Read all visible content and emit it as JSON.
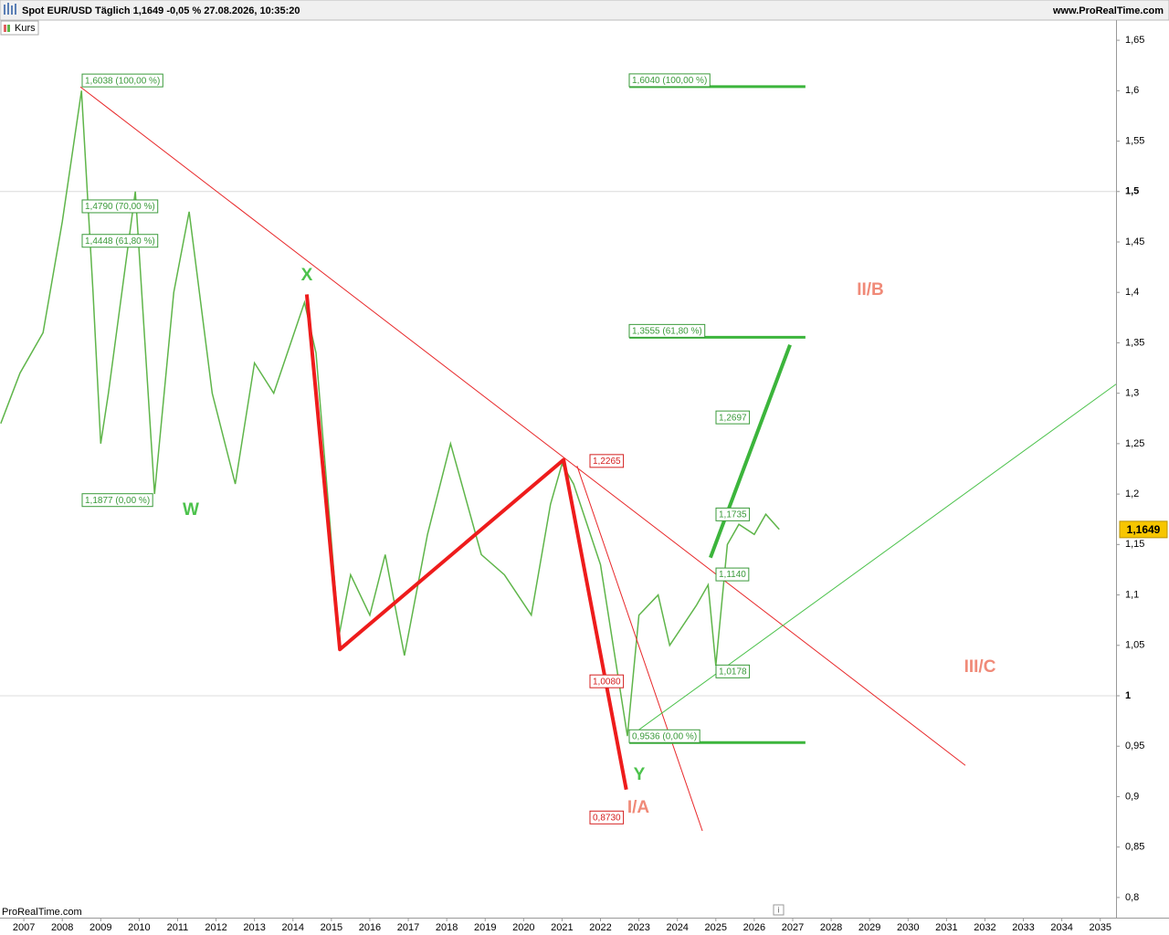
{
  "chart_data": {
    "type": "line",
    "title": "Spot EUR/USD Täglich 1,1649 -0,05 % 27.08.2026, 10:35:20",
    "source": "www.ProRealTime.com",
    "watermark": "ProRealTime.com",
    "series": [
      {
        "name": "Kurs",
        "color": "#5fb54a",
        "values": [
          1.27,
          1.32,
          1.36,
          1.47,
          1.6,
          1.4,
          1.25,
          1.3,
          1.5,
          1.2,
          1.4,
          1.48,
          1.3,
          1.21,
          1.33,
          1.3,
          1.39,
          1.34,
          1.06,
          1.12,
          1.08,
          1.14,
          1.04,
          1.16,
          1.25,
          1.14,
          1.12,
          1.08,
          1.19,
          1.23,
          1.21,
          1.13,
          0.96,
          1.08,
          1.1,
          1.05,
          1.09,
          1.11,
          1.03,
          1.15,
          1.17,
          1.16,
          1.18,
          1.165
        ]
      }
    ],
    "x": [
      2006.4,
      2006.9,
      2007.5,
      2008.0,
      2008.5,
      2008.8,
      2009.0,
      2009.2,
      2009.9,
      2010.4,
      2010.9,
      2011.3,
      2011.9,
      2012.5,
      2013.0,
      2013.5,
      2014.3,
      2014.6,
      2015.2,
      2015.5,
      2016.0,
      2016.4,
      2016.9,
      2017.5,
      2018.1,
      2018.9,
      2019.5,
      2020.2,
      2020.7,
      2021.0,
      2021.3,
      2022.0,
      2022.7,
      2023.0,
      2023.5,
      2023.8,
      2024.5,
      2024.8,
      2025.0,
      2025.3,
      2025.6,
      2026.0,
      2026.3,
      2026.65
    ],
    "xlim": [
      2006.38,
      2035.41
    ],
    "xticks": [
      2007,
      2008,
      2009,
      2010,
      2011,
      2012,
      2013,
      2014,
      2015,
      2016,
      2017,
      2018,
      2019,
      2020,
      2021,
      2022,
      2023,
      2024,
      2025,
      2026,
      2027,
      2028,
      2029,
      2030,
      2031,
      2032,
      2033,
      2034,
      2035
    ],
    "ylim": [
      0.78,
      1.67
    ],
    "yticks": [
      {
        "value": 0.8,
        "label": "0,8"
      },
      {
        "value": 0.85,
        "label": "0,85"
      },
      {
        "value": 0.9,
        "label": "0,9"
      },
      {
        "value": 0.95,
        "label": "0,95"
      },
      1,
      {
        "value": 1.05,
        "label": "1,05"
      },
      {
        "value": 1.1,
        "label": "1,1"
      },
      {
        "value": 1.15,
        "label": "1,15"
      },
      {
        "value": 1.2,
        "label": "1,2"
      },
      {
        "value": 1.25,
        "label": "1,25"
      },
      {
        "value": 1.3,
        "label": "1,3"
      },
      {
        "value": 1.35,
        "label": "1,35"
      },
      {
        "value": 1.4,
        "label": "1,4"
      },
      {
        "value": 1.45,
        "label": "1,45"
      },
      {
        "value": 1.5,
        "label": "1,5"
      },
      {
        "value": 1.55,
        "label": "1,55"
      },
      {
        "value": 1.6,
        "label": "1,6"
      },
      {
        "value": 1.65,
        "label": "1,65"
      }
    ],
    "last_price": {
      "value": 1.1649,
      "label": "1,1649"
    },
    "lines": [
      {
        "color": "#e8282a",
        "width": 1,
        "points": [
          [
            2008.47,
            1.6038
          ],
          [
            2031.49,
            0.931
          ]
        ]
      },
      {
        "color": "#e8282a",
        "width": 1,
        "points": [
          [
            2021.39,
            1.228
          ],
          [
            2024.65,
            0.866
          ]
        ]
      },
      {
        "color": "#4cc24c",
        "width": 1,
        "points": [
          [
            2022.77,
            0.96
          ],
          [
            2035.41,
            1.309
          ]
        ]
      },
      {
        "color": "#ee1c1c",
        "width": 4,
        "points": [
          [
            2014.36,
            1.398
          ],
          [
            2015.22,
            1.046
          ],
          [
            2021.04,
            1.234
          ],
          [
            2022.67,
            0.907
          ]
        ]
      },
      {
        "color": "#3cb53c",
        "width": 4,
        "points": [
          [
            2024.86,
            1.137
          ],
          [
            2026.93,
            1.348
          ]
        ]
      }
    ],
    "levels": [
      {
        "value": 1.604,
        "color": "#3cb53c",
        "x": [
          2022.75,
          2027.33
        ]
      },
      {
        "value": 1.3555,
        "color": "#3cb53c",
        "x": [
          2022.75,
          2027.33
        ]
      },
      {
        "value": 0.9536,
        "color": "#3cb53c",
        "x": [
          2022.75,
          2027.33
        ]
      }
    ],
    "annotations": [
      {
        "value": 1.6038,
        "label": "1,6038 (100,00 %)",
        "color": "#3a9a3a"
      },
      {
        "value": 1.479,
        "label": "1,4790 (70,00 %)",
        "color": "#3a9a3a"
      },
      {
        "value": 1.4448,
        "label": "1,4448 (61,80 %)",
        "color": "#3a9a3a"
      },
      {
        "value": 1.1877,
        "label": "1,1877 (0,00 %)",
        "color": "#3a9a3a"
      },
      {
        "value": 1.604,
        "label": "1,6040 (100,00 %)",
        "color": "#3a9a3a"
      },
      {
        "value": 1.3555,
        "label": "1,3555 (61,80 %)",
        "color": "#3a9a3a"
      },
      {
        "value": 0.9536,
        "label": "0,9536 (0,00 %)",
        "color": "#3a9a3a"
      },
      {
        "value": 1.2697,
        "label": "1,2697",
        "color": "#3a9a3a"
      },
      {
        "value": 1.1735,
        "label": "1,1735",
        "color": "#3a9a3a"
      },
      {
        "value": 1.114,
        "label": "1,1140",
        "color": "#3a9a3a"
      },
      {
        "value": 1.0178,
        "label": "1,0178",
        "color": "#3a9a3a"
      },
      {
        "value": 1.2265,
        "label": "1,2265",
        "color": "#d42020"
      },
      {
        "value": 1.008,
        "label": "1,0080",
        "color": "#d42020"
      },
      {
        "value": 0.873,
        "label": "0,8730",
        "color": "#d42020"
      }
    ],
    "wave_labels": [
      {
        "label": "W",
        "color": "#4cc24c"
      },
      {
        "label": "X",
        "color": "#4cc24c"
      },
      {
        "label": "Y",
        "color": "#4cc24c"
      },
      {
        "label": "I/A",
        "color": "#f08a78"
      },
      {
        "label": "II/B",
        "color": "#f08a78"
      },
      {
        "label": "III/C",
        "color": "#f08a78"
      }
    ]
  }
}
